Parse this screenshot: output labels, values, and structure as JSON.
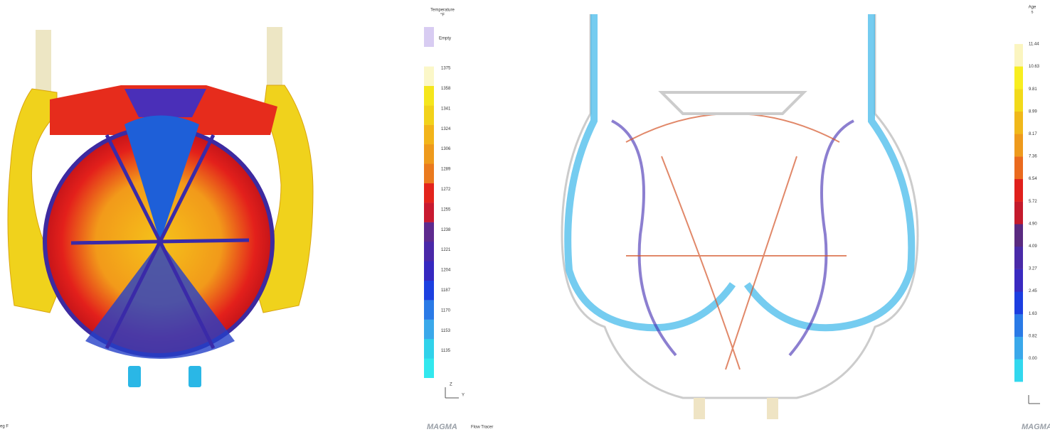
{
  "left_view": {
    "legend": {
      "title": "Temperature",
      "unit": "°F",
      "empty_label": "Empty",
      "labels": [
        "1375",
        "1358",
        "1341",
        "1324",
        "1306",
        "1289",
        "1272",
        "1255",
        "1238",
        "1221",
        "1204",
        "1187",
        "1170",
        "1153",
        "1135"
      ]
    },
    "axis_z": "Z",
    "axis_y": "Y",
    "corner_text": "eg F",
    "brand": "MAGMA",
    "product": "Flow Tracer"
  },
  "right_view": {
    "legend": {
      "title": "Age",
      "unit": "s",
      "labels": [
        "11.44",
        "10.63",
        "9.81",
        "8.99",
        "8.17",
        "7.36",
        "6.54",
        "5.72",
        "4.90",
        "4.09",
        "3.27",
        "2.45",
        "1.63",
        "0.82",
        "0.00"
      ]
    },
    "brand": "MAGMA"
  }
}
